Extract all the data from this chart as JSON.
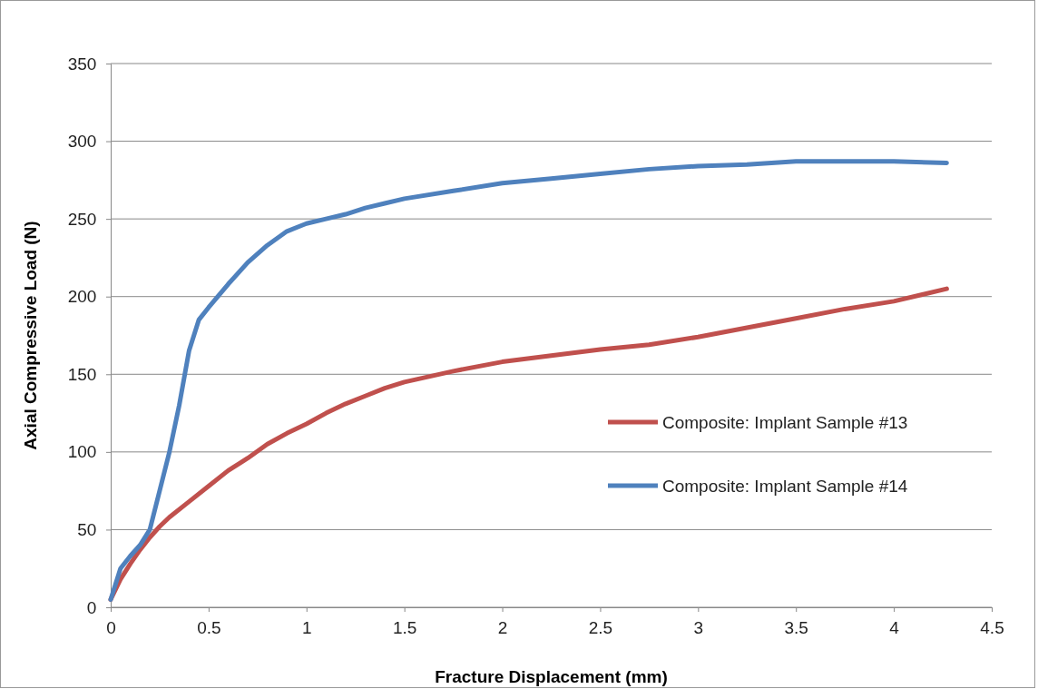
{
  "chart_data": {
    "type": "line",
    "xlabel": "Fracture Displacement (mm)",
    "ylabel": "Axial Compressive Load (N)",
    "xlim": [
      0,
      4.5
    ],
    "xticks": [
      0,
      0.5,
      1,
      1.5,
      2,
      2.5,
      3,
      3.5,
      4,
      4.5
    ],
    "ylim": [
      0,
      350
    ],
    "yticks": [
      0,
      50,
      100,
      150,
      200,
      250,
      300,
      350
    ],
    "grid": "y",
    "legend": "right",
    "marker": "none",
    "line_style": "solid",
    "series": [
      {
        "name": "Composite: Implant Sample #13",
        "color": "#c0504d",
        "x": [
          0,
          0.05,
          0.1,
          0.15,
          0.2,
          0.25,
          0.3,
          0.4,
          0.5,
          0.6,
          0.7,
          0.8,
          0.9,
          1.0,
          1.1,
          1.2,
          1.3,
          1.4,
          1.5,
          1.75,
          2.0,
          2.25,
          2.5,
          2.75,
          3.0,
          3.25,
          3.5,
          3.75,
          4.0,
          4.27
        ],
        "values": [
          5,
          18,
          28,
          37,
          45,
          52,
          58,
          68,
          78,
          88,
          96,
          105,
          112,
          118,
          125,
          131,
          136,
          141,
          145,
          152,
          158,
          162,
          166,
          169,
          174,
          180,
          186,
          192,
          197,
          205
        ]
      },
      {
        "name": "Composite: Implant Sample #14",
        "color": "#4f81bd",
        "x": [
          0,
          0.05,
          0.1,
          0.15,
          0.2,
          0.25,
          0.3,
          0.35,
          0.4,
          0.45,
          0.5,
          0.6,
          0.7,
          0.8,
          0.9,
          1.0,
          1.1,
          1.2,
          1.3,
          1.4,
          1.5,
          1.75,
          2.0,
          2.25,
          2.5,
          2.75,
          3.0,
          3.25,
          3.5,
          3.75,
          4.0,
          4.27
        ],
        "values": [
          5,
          25,
          33,
          40,
          50,
          75,
          100,
          130,
          165,
          185,
          193,
          208,
          222,
          233,
          242,
          247,
          250,
          253,
          257,
          260,
          263,
          268,
          273,
          276,
          279,
          282,
          284,
          285,
          287,
          287,
          287,
          286
        ]
      }
    ]
  }
}
